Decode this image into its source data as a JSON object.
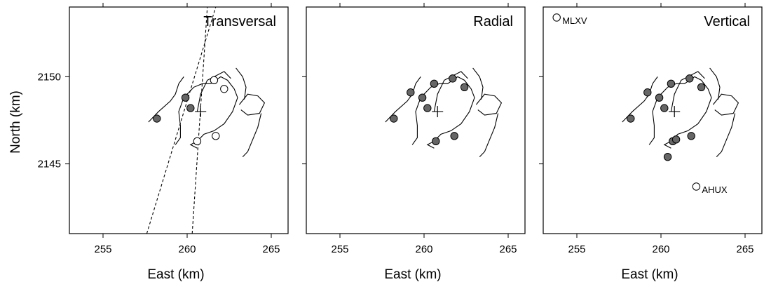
{
  "figure": {
    "ylabel": "North (km)",
    "xlabel": "East (km)"
  },
  "chart_data": [
    {
      "type": "scatter",
      "title": "Transversal",
      "xlabel": "East (km)",
      "ylabel": "North (km)",
      "xlim": [
        253,
        266
      ],
      "ylim": [
        2141.0,
        2154.0
      ],
      "xticks": [
        255,
        260,
        265
      ],
      "yticks": [
        2145,
        2150
      ],
      "center": [
        260.8,
        2148.0
      ],
      "series": [
        {
          "fill": "#666666",
          "points": [
            [
              258.2,
              2147.6
            ],
            [
              259.9,
              2148.8
            ],
            [
              260.2,
              2148.2
            ]
          ]
        },
        {
          "fill": "#ffffff",
          "points": [
            [
              261.6,
              2149.8
            ],
            [
              262.2,
              2149.3
            ],
            [
              261.7,
              2146.6
            ],
            [
              260.6,
              2146.3
            ]
          ]
        }
      ],
      "dashed_lines": [
        [
          [
            257.6,
            2141.0
          ],
          [
            261.7,
            2154.0
          ]
        ],
        [
          [
            260.3,
            2141.0
          ],
          [
            261.2,
            2154.0
          ]
        ]
      ],
      "station_labels": []
    },
    {
      "type": "scatter",
      "title": "Radial",
      "xlabel": "East (km)",
      "xlim": [
        253,
        266
      ],
      "ylim": [
        2141.0,
        2154.0
      ],
      "xticks": [
        255,
        260,
        265
      ],
      "yticks": [
        2145,
        2150
      ],
      "center": [
        260.8,
        2148.0
      ],
      "series": [
        {
          "fill": "#666666",
          "points": [
            [
              258.2,
              2147.6
            ],
            [
              259.2,
              2149.1
            ],
            [
              259.9,
              2148.8
            ],
            [
              260.2,
              2148.2
            ],
            [
              260.6,
              2149.6
            ],
            [
              261.7,
              2149.9
            ],
            [
              262.4,
              2149.4
            ],
            [
              261.8,
              2146.6
            ],
            [
              260.7,
              2146.3
            ]
          ]
        }
      ],
      "dashed_lines": [],
      "station_labels": []
    },
    {
      "type": "scatter",
      "title": "Vertical",
      "xlabel": "East (km)",
      "xlim": [
        253,
        266
      ],
      "ylim": [
        2141.0,
        2154.0
      ],
      "xticks": [
        255,
        260,
        265
      ],
      "yticks": [
        2145,
        2150
      ],
      "center": [
        260.8,
        2148.0
      ],
      "series": [
        {
          "fill": "#666666",
          "points": [
            [
              258.2,
              2147.6
            ],
            [
              259.2,
              2149.1
            ],
            [
              259.9,
              2148.8
            ],
            [
              260.2,
              2148.2
            ],
            [
              260.6,
              2149.6
            ],
            [
              261.7,
              2149.9
            ],
            [
              262.4,
              2149.4
            ],
            [
              261.8,
              2146.6
            ],
            [
              260.7,
              2146.3
            ],
            [
              260.9,
              2146.4
            ],
            [
              260.4,
              2145.4
            ]
          ]
        },
        {
          "fill": "#ffffff",
          "points": [
            [
              253.8,
              2153.4
            ],
            [
              262.1,
              2143.7
            ]
          ]
        }
      ],
      "dashed_lines": [],
      "station_labels": [
        {
          "text": "MLXV",
          "x": 253.8,
          "y": 2153.4
        },
        {
          "text": "AHUX",
          "x": 262.1,
          "y": 2143.7
        }
      ]
    }
  ]
}
